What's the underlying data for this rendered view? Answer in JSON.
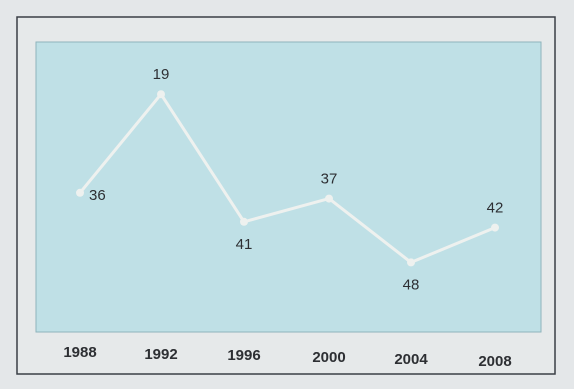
{
  "chart_data": {
    "type": "line",
    "title": "",
    "xlabel": "",
    "ylabel": "",
    "categories": [
      "1988",
      "1992",
      "1996",
      "2000",
      "2004",
      "2008"
    ],
    "series": [
      {
        "values": [
          36,
          19,
          41,
          37,
          48,
          42
        ]
      }
    ],
    "y_axis_inverted": true,
    "ylim": [
      10,
      60
    ],
    "grid": false,
    "legend": "none",
    "data_labels": true
  },
  "colors": {
    "page_background": "#e4e7e9",
    "plot_background": "#bfe0e6",
    "frame_border": "#3a3f46",
    "plot_border": "#8fb4bc",
    "line": "#eef1ef",
    "text": "#2d2f33"
  }
}
